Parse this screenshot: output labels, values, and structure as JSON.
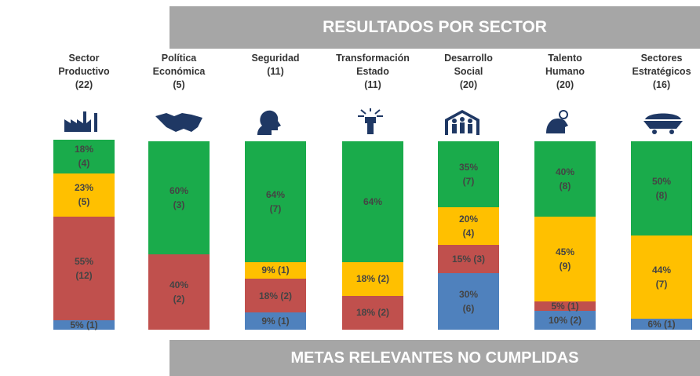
{
  "chart_data": {
    "type": "stacked_bar",
    "title": "RESULTADOS POR SECTOR",
    "footer": "METAS RELEVANTES NO CUMPLIDAS",
    "categories": [
      "Sector\nProductivo\n(22)",
      "Política\nEconómica\n(5)",
      "Seguridad\n(11)",
      "Transformación\nEstado\n(11)",
      "Desarrollo\nSocial\n(20)",
      "Talento\nHumano\n(20)",
      "Sectores\nEstratégicos\n(16)"
    ],
    "ylim": [
      0,
      100
    ],
    "series": [
      {
        "color": "#4f81bd",
        "values": [
          5,
          null,
          9,
          null,
          30,
          10,
          6
        ],
        "value_labels": [
          "5% (1)",
          null,
          "9% (1)",
          null,
          "30%\n(6)",
          "10% (2)",
          "6% (1)"
        ]
      },
      {
        "color": "#c0504d",
        "values": [
          55,
          40,
          18,
          18,
          15,
          5,
          null
        ],
        "value_labels": [
          "55%\n(12)",
          "40%\n(2)",
          "18% (2)",
          "18% (2)",
          "15% (3)",
          "5% (1)",
          null
        ]
      },
      {
        "color": "#ffc000",
        "values": [
          23,
          null,
          9,
          18,
          20,
          45,
          44
        ],
        "value_labels": [
          "23%\n(5)",
          null,
          "9% (1)",
          "18% (2)",
          "20%\n(4)",
          "45%\n(9)",
          "44%\n(7)"
        ]
      },
      {
        "color": "#1aab4b",
        "values": [
          18,
          60,
          64,
          64,
          35,
          40,
          50
        ],
        "value_labels": [
          "18%\n(4)",
          "60%\n(3)",
          "64%\n(7)",
          "64%",
          "35%\n(7)",
          "40%\n(8)",
          "50%\n(8)"
        ]
      }
    ]
  }
}
